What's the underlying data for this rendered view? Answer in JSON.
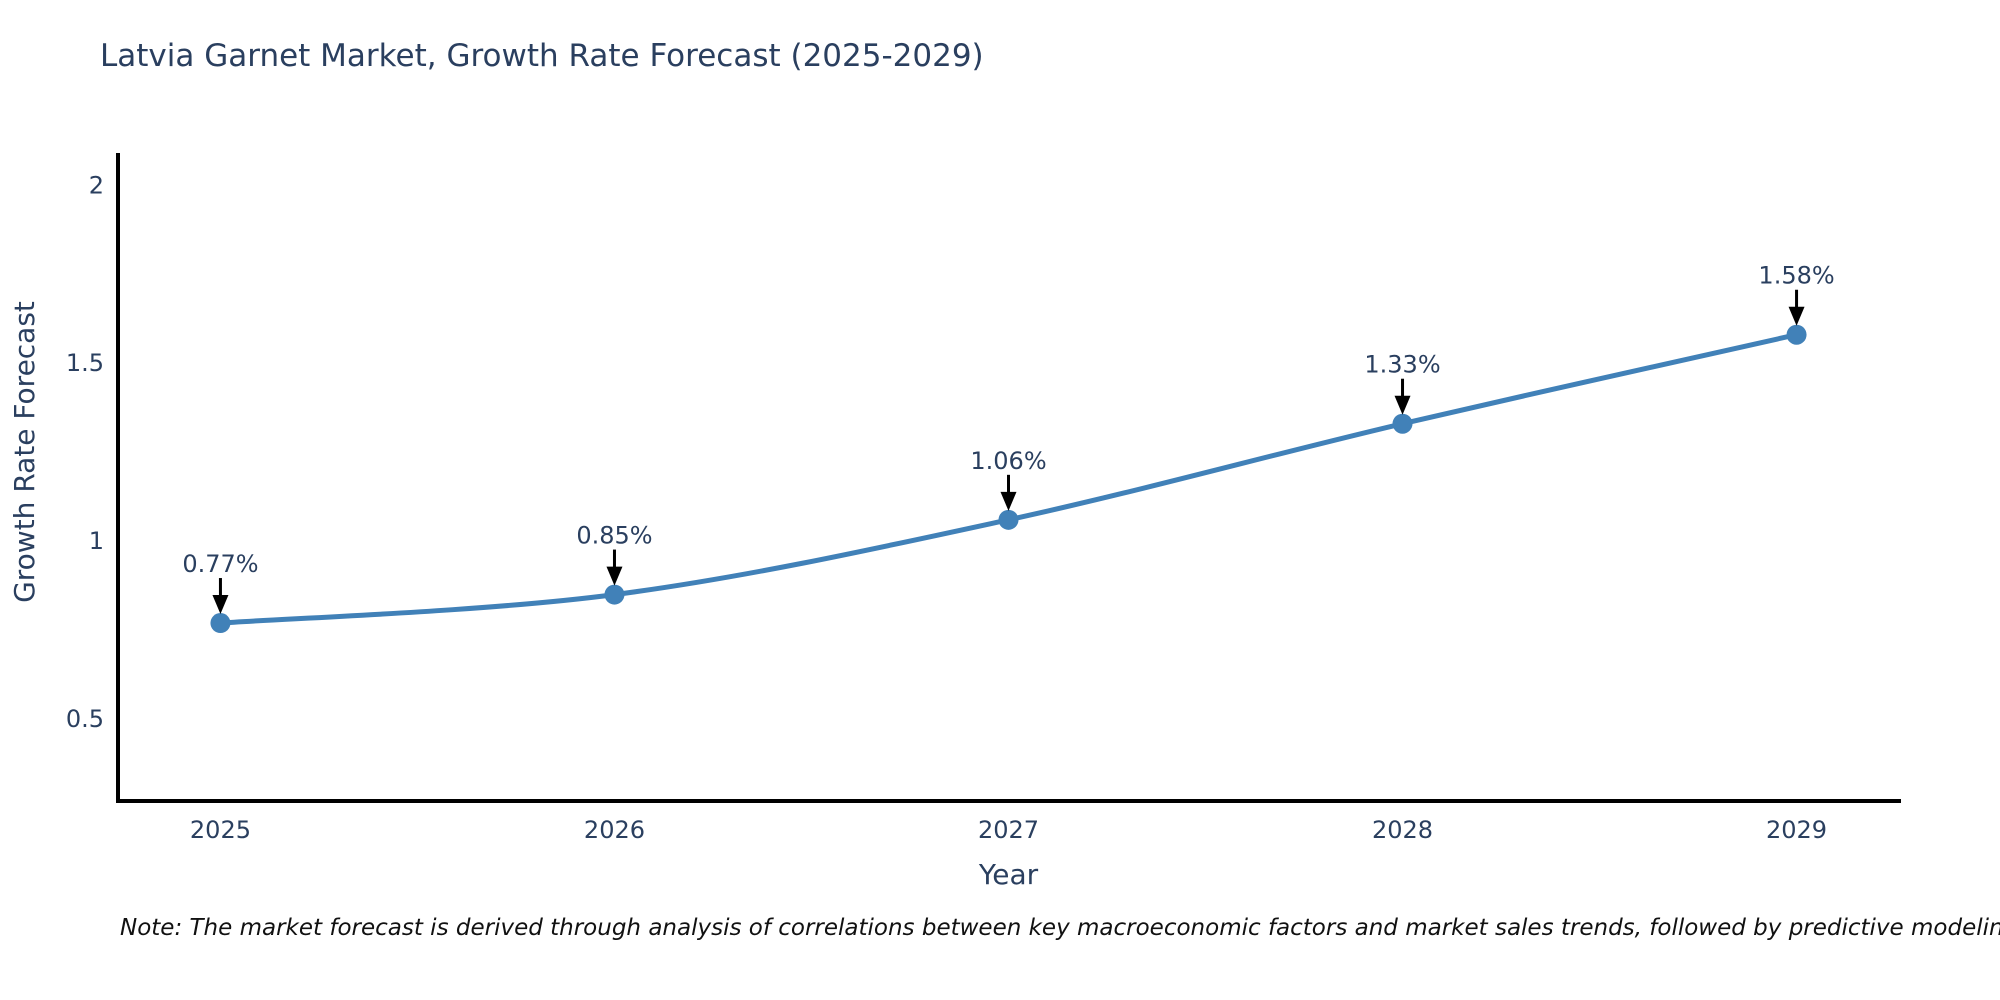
{
  "chart_data": {
    "type": "line",
    "title": "Latvia Garnet Market, Growth Rate Forecast (2025-2029)",
    "xlabel": "Year",
    "ylabel": "Growth Rate Forecast",
    "x": [
      2025,
      2026,
      2027,
      2028,
      2029
    ],
    "series": [
      {
        "name": "Growth Rate Forecast",
        "values": [
          0.77,
          0.85,
          1.06,
          1.33,
          1.58
        ]
      }
    ],
    "point_labels": [
      "0.77%",
      "0.85%",
      "1.06%",
      "1.33%",
      "1.58%"
    ],
    "xtick_labels": [
      "2025",
      "2026",
      "2027",
      "2028",
      "2029"
    ],
    "ytick_values": [
      0.5,
      1,
      1.5,
      2
    ],
    "ytick_labels": [
      "0.5",
      "1",
      "1.5",
      "2"
    ],
    "xlim": [
      2024.74,
      2029.26
    ],
    "ylim": [
      0.27,
      2.085
    ],
    "grid": false,
    "legend_position": "none",
    "line_shape": "spline",
    "colors": {
      "line": "#4181b8",
      "marker": "#4181b8",
      "axis_line": "#000000",
      "tick_text": "#2a3f5f",
      "annotation_text": "#2a3f5f",
      "annotation_arrow": "#000000",
      "title_text": "#2a3f5f",
      "note_text": "#111111",
      "background": "#ffffff"
    },
    "note": "Note: The market forecast is derived through analysis of correlations between key macroeconomic factors and market sales trends, followed by predictive modeling to project future sales"
  }
}
